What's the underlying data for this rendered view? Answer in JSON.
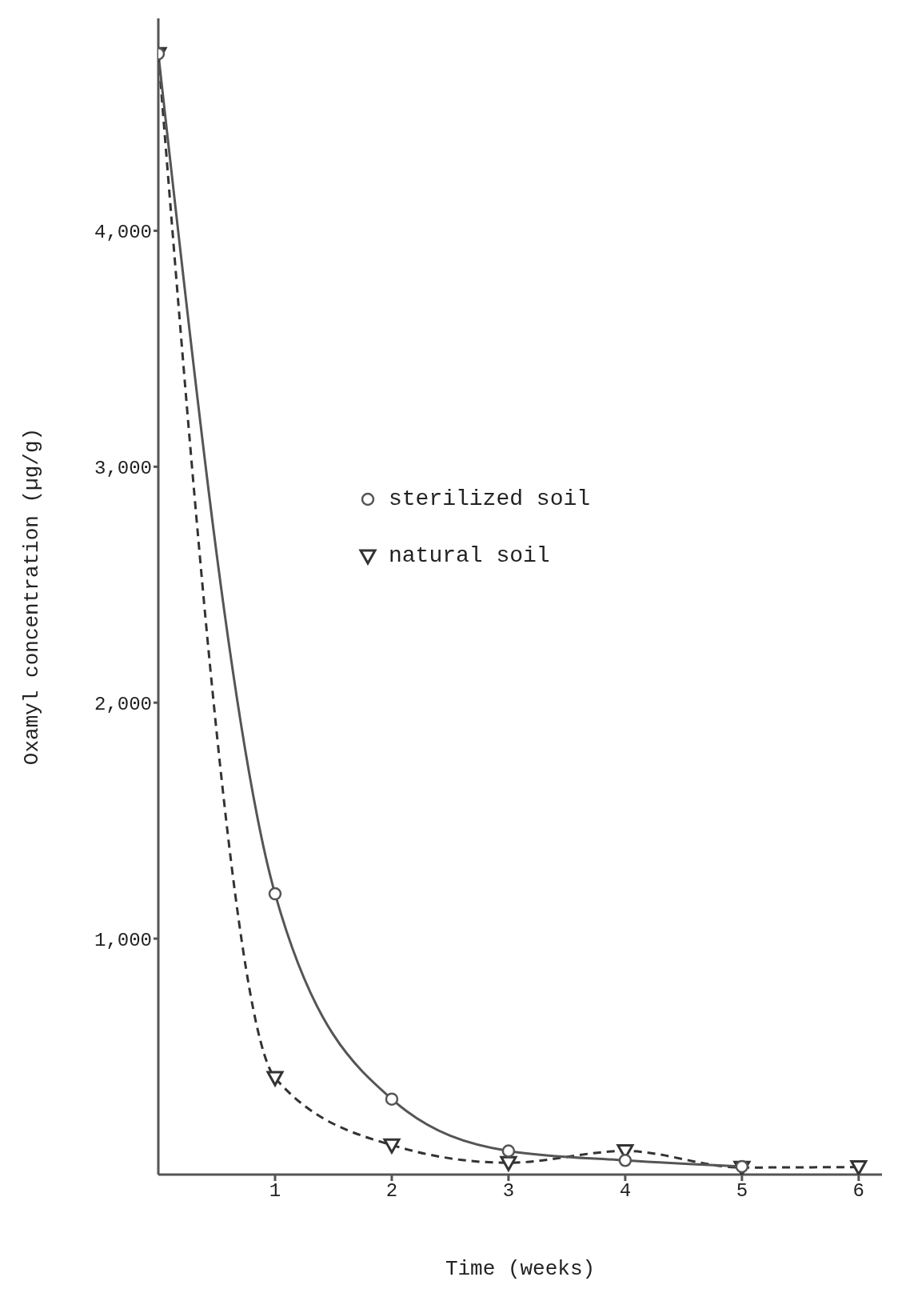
{
  "chart_data": {
    "type": "line",
    "xlabel": "Time (weeks)",
    "ylabel": "Oxamyl concentration (µg/g)",
    "x": [
      0,
      1,
      2,
      3,
      4,
      5,
      6
    ],
    "series": [
      {
        "name": "sterilized soil",
        "color": "#555555",
        "marker": "circle",
        "line_style": "solid",
        "values": [
          4750,
          1190,
          320,
          100,
          60,
          34,
          null
        ]
      },
      {
        "name": "natural soil",
        "color": "#333333",
        "marker": "triangle",
        "line_style": "dashed",
        "values": [
          4750,
          410,
          125,
          50,
          100,
          30,
          32
        ]
      }
    ],
    "xlim": [
      0,
      6.2
    ],
    "xticks": [
      1,
      2,
      3,
      4,
      5,
      6
    ],
    "ylim": [
      0,
      4900
    ],
    "yticks": [
      {
        "value": 1000,
        "label": "1,000"
      },
      {
        "value": 2000,
        "label": "2,000"
      },
      {
        "value": 3000,
        "label": "3,000"
      },
      {
        "value": 4000,
        "label": "4,000"
      }
    ],
    "grid": false,
    "legend": "top left"
  }
}
